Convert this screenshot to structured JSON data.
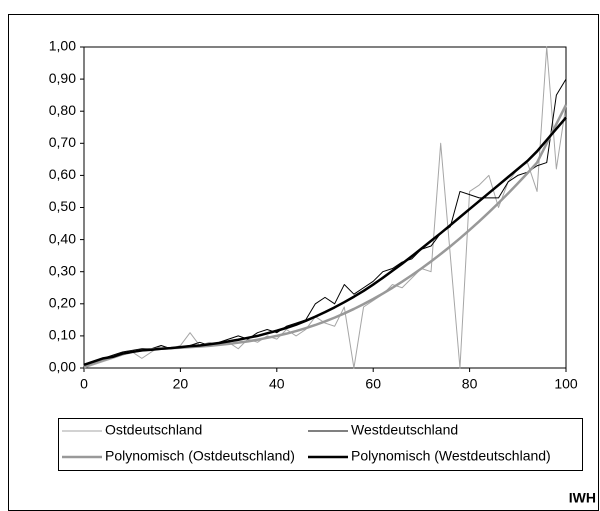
{
  "chart_data": {
    "type": "line",
    "x": [
      0,
      2,
      4,
      6,
      8,
      10,
      12,
      14,
      16,
      18,
      20,
      22,
      24,
      26,
      28,
      30,
      32,
      34,
      36,
      38,
      40,
      42,
      44,
      46,
      48,
      50,
      52,
      54,
      56,
      58,
      60,
      62,
      64,
      66,
      68,
      70,
      72,
      74,
      76,
      78,
      80,
      82,
      84,
      86,
      88,
      90,
      92,
      94,
      96,
      98,
      100
    ],
    "series": [
      {
        "name": "Ostdeutschland",
        "color": "#a6a6a6",
        "line_width": 1,
        "values": [
          0.0,
          0.01,
          0.02,
          0.03,
          0.04,
          0.05,
          0.03,
          0.05,
          0.07,
          0.06,
          0.07,
          0.11,
          0.07,
          0.08,
          0.07,
          0.08,
          0.06,
          0.09,
          0.08,
          0.1,
          0.09,
          0.12,
          0.1,
          0.12,
          0.16,
          0.14,
          0.13,
          0.19,
          0.0,
          0.19,
          0.21,
          0.23,
          0.26,
          0.25,
          0.28,
          0.31,
          0.3,
          0.7,
          0.35,
          0.0,
          0.55,
          0.57,
          0.6,
          0.5,
          0.58,
          0.62,
          0.64,
          0.55,
          1.0,
          0.62,
          0.82
        ]
      },
      {
        "name": "Westdeutschland",
        "color": "#000000",
        "line_width": 1,
        "values": [
          0.01,
          0.02,
          0.03,
          0.04,
          0.05,
          0.055,
          0.06,
          0.06,
          0.07,
          0.06,
          0.065,
          0.07,
          0.08,
          0.07,
          0.08,
          0.09,
          0.1,
          0.09,
          0.11,
          0.12,
          0.11,
          0.13,
          0.14,
          0.15,
          0.2,
          0.22,
          0.2,
          0.26,
          0.23,
          0.25,
          0.27,
          0.3,
          0.31,
          0.33,
          0.34,
          0.37,
          0.38,
          0.42,
          0.44,
          0.55,
          0.54,
          0.53,
          0.53,
          0.53,
          0.58,
          0.6,
          0.61,
          0.63,
          0.64,
          0.85,
          0.9
        ]
      },
      {
        "name": "Polynomisch (Ostdeutschland)",
        "color": "#999999",
        "line_width": 2.5,
        "values": [
          0.005,
          0.015,
          0.025,
          0.035,
          0.043,
          0.05,
          0.055,
          0.058,
          0.06,
          0.062,
          0.063,
          0.065,
          0.067,
          0.069,
          0.072,
          0.075,
          0.079,
          0.083,
          0.088,
          0.094,
          0.1,
          0.107,
          0.115,
          0.124,
          0.134,
          0.145,
          0.157,
          0.17,
          0.184,
          0.199,
          0.215,
          0.232,
          0.25,
          0.269,
          0.289,
          0.31,
          0.332,
          0.355,
          0.379,
          0.404,
          0.43,
          0.457,
          0.485,
          0.514,
          0.544,
          0.575,
          0.607,
          0.64,
          0.7,
          0.76,
          0.82
        ]
      },
      {
        "name": "Polynomisch (Westdeutschland)",
        "color": "#000000",
        "line_width": 2.5,
        "values": [
          0.01,
          0.02,
          0.03,
          0.035,
          0.045,
          0.05,
          0.055,
          0.057,
          0.06,
          0.062,
          0.065,
          0.068,
          0.07,
          0.074,
          0.078,
          0.083,
          0.088,
          0.094,
          0.1,
          0.108,
          0.116,
          0.125,
          0.135,
          0.147,
          0.16,
          0.174,
          0.189,
          0.205,
          0.222,
          0.24,
          0.26,
          0.281,
          0.303,
          0.325,
          0.348,
          0.372,
          0.396,
          0.42,
          0.445,
          0.47,
          0.495,
          0.52,
          0.545,
          0.57,
          0.595,
          0.62,
          0.645,
          0.675,
          0.71,
          0.745,
          0.78
        ]
      }
    ],
    "xlim": [
      0,
      100
    ],
    "xticks": [
      0,
      20,
      40,
      60,
      80,
      100
    ],
    "ylim": [
      0,
      1
    ],
    "yticks": [
      {
        "value": 0,
        "label": "0,00"
      },
      {
        "value": 0.1,
        "label": "0,10"
      },
      {
        "value": 0.2,
        "label": "0,20"
      },
      {
        "value": 0.3,
        "label": "0,30"
      },
      {
        "value": 0.4,
        "label": "0,40"
      },
      {
        "value": 0.5,
        "label": "0,50"
      },
      {
        "value": 0.6,
        "label": "0,60"
      },
      {
        "value": 0.7,
        "label": "0,70"
      },
      {
        "value": 0.8,
        "label": "0,80"
      },
      {
        "value": 0.9,
        "label": "0,90"
      },
      {
        "value": 1,
        "label": "1,00"
      }
    ],
    "legend": "bottom",
    "source": "IWH"
  }
}
